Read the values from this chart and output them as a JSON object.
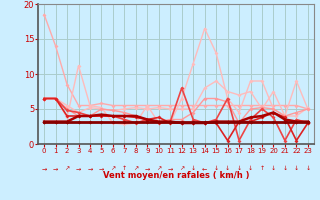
{
  "background_color": "#cceeff",
  "grid_color": "#aacccc",
  "xlim": [
    -0.5,
    23.5
  ],
  "ylim": [
    0,
    20
  ],
  "yticks": [
    0,
    5,
    10,
    15,
    20
  ],
  "xticks": [
    0,
    1,
    2,
    3,
    4,
    5,
    6,
    7,
    8,
    9,
    10,
    11,
    12,
    13,
    14,
    15,
    16,
    17,
    18,
    19,
    20,
    21,
    22,
    23
  ],
  "xlabel": "Vent moyen/en rafales ( km/h )",
  "xlabel_color": "#cc0000",
  "tick_color": "#cc0000",
  "axis_color": "#888888",
  "series": [
    {
      "x": [
        0,
        1,
        2,
        3,
        4,
        5,
        6,
        7,
        8,
        9,
        10,
        11,
        12,
        13,
        14,
        15,
        16,
        17,
        18,
        19,
        20,
        21,
        22,
        23
      ],
      "y": [
        18.5,
        14.0,
        8.5,
        5.5,
        5.5,
        5.8,
        5.5,
        5.5,
        5.5,
        5.5,
        5.5,
        5.5,
        5.5,
        5.5,
        5.5,
        5.5,
        5.5,
        5.5,
        5.5,
        5.5,
        5.5,
        5.5,
        5.5,
        5.0
      ],
      "color": "#ffaaaa",
      "alpha": 1.0,
      "linewidth": 1.0,
      "marker": "D",
      "markersize": 2.0
    },
    {
      "x": [
        0,
        1,
        2,
        3,
        4,
        5,
        6,
        7,
        8,
        9,
        10,
        11,
        12,
        13,
        14,
        15,
        16,
        17,
        18,
        19,
        20,
        21,
        22,
        23
      ],
      "y": [
        6.5,
        6.5,
        5.5,
        4.5,
        5.2,
        5.0,
        4.8,
        5.0,
        5.2,
        5.0,
        5.2,
        5.0,
        5.0,
        5.0,
        8.0,
        9.0,
        7.5,
        7.0,
        7.5,
        5.0,
        7.5,
        4.0,
        9.0,
        5.0
      ],
      "color": "#ffbbbb",
      "alpha": 1.0,
      "linewidth": 1.0,
      "marker": "D",
      "markersize": 2.0
    },
    {
      "x": [
        0,
        1,
        2,
        3,
        4,
        5,
        6,
        7,
        8,
        9,
        10,
        11,
        12,
        13,
        14,
        15,
        16,
        17,
        18,
        19,
        20,
        21,
        22,
        23
      ],
      "y": [
        6.5,
        6.5,
        3.8,
        11.2,
        5.5,
        5.2,
        3.0,
        2.8,
        3.0,
        5.5,
        3.0,
        3.0,
        6.5,
        11.5,
        16.5,
        13.0,
        6.5,
        4.5,
        9.0,
        9.0,
        5.0,
        4.0,
        4.0,
        5.2
      ],
      "color": "#ffbbbb",
      "alpha": 1.0,
      "linewidth": 1.0,
      "marker": "D",
      "markersize": 2.0
    },
    {
      "x": [
        0,
        1,
        2,
        3,
        4,
        5,
        6,
        7,
        8,
        9,
        10,
        11,
        12,
        13,
        14,
        15,
        16,
        17,
        18,
        19,
        20,
        21,
        22,
        23
      ],
      "y": [
        6.5,
        6.5,
        5.0,
        4.0,
        4.0,
        5.0,
        4.8,
        4.5,
        4.0,
        3.5,
        3.2,
        3.5,
        3.5,
        4.5,
        6.5,
        6.5,
        6.0,
        3.0,
        5.0,
        5.2,
        5.0,
        4.0,
        4.5,
        5.0
      ],
      "color": "#ff9999",
      "alpha": 1.0,
      "linewidth": 1.0,
      "marker": "D",
      "markersize": 2.0
    },
    {
      "x": [
        0,
        1,
        2,
        3,
        4,
        5,
        6,
        7,
        8,
        9,
        10,
        11,
        12,
        13,
        14,
        15,
        16,
        17,
        18,
        19,
        20,
        21,
        22,
        23
      ],
      "y": [
        6.5,
        6.5,
        4.8,
        4.5,
        4.0,
        4.0,
        4.0,
        3.5,
        3.0,
        3.5,
        3.0,
        3.2,
        8.0,
        3.5,
        3.0,
        3.5,
        6.5,
        0.5,
        3.5,
        5.0,
        3.8,
        0.5,
        3.5,
        3.0
      ],
      "color": "#ee4444",
      "alpha": 1.0,
      "linewidth": 1.2,
      "marker": "D",
      "markersize": 2.0
    },
    {
      "x": [
        0,
        1,
        2,
        3,
        4,
        5,
        6,
        7,
        8,
        9,
        10,
        11,
        12,
        13,
        14,
        15,
        16,
        17,
        18,
        19,
        20,
        21,
        22,
        23
      ],
      "y": [
        6.5,
        6.5,
        4.0,
        4.0,
        4.0,
        4.0,
        4.0,
        4.0,
        3.8,
        3.5,
        3.8,
        3.0,
        3.0,
        3.0,
        3.0,
        3.0,
        0.5,
        3.2,
        3.2,
        3.8,
        4.5,
        3.8,
        0.5,
        3.0
      ],
      "color": "#dd2222",
      "alpha": 1.0,
      "linewidth": 1.2,
      "marker": "D",
      "markersize": 2.0
    },
    {
      "x": [
        0,
        1,
        2,
        3,
        4,
        5,
        6,
        7,
        8,
        9,
        10,
        11,
        12,
        13,
        14,
        15,
        16,
        17,
        18,
        19,
        20,
        21,
        22,
        23
      ],
      "y": [
        3.2,
        3.2,
        3.2,
        4.0,
        4.0,
        4.2,
        4.0,
        4.0,
        4.0,
        3.5,
        3.2,
        3.2,
        3.0,
        3.0,
        3.0,
        3.2,
        3.2,
        3.2,
        3.8,
        4.0,
        4.5,
        3.5,
        3.2,
        3.2
      ],
      "color": "#aa0000",
      "alpha": 1.0,
      "linewidth": 1.8,
      "marker": "D",
      "markersize": 2.0
    },
    {
      "x": [
        0,
        1,
        2,
        3,
        4,
        5,
        6,
        7,
        8,
        9,
        10,
        11,
        12,
        13,
        14,
        15,
        16,
        17,
        18,
        19,
        20,
        21,
        22,
        23
      ],
      "y": [
        3.2,
        3.2,
        3.2,
        3.2,
        3.2,
        3.2,
        3.2,
        3.2,
        3.2,
        3.2,
        3.2,
        3.2,
        3.2,
        3.2,
        3.2,
        3.2,
        3.2,
        3.2,
        3.2,
        3.2,
        3.2,
        3.2,
        3.2,
        3.2
      ],
      "color": "#880000",
      "alpha": 1.0,
      "linewidth": 2.0,
      "marker": "D",
      "markersize": 2.0
    }
  ],
  "arrows": [
    "→",
    "→",
    "↗",
    "→",
    "→",
    "→",
    "↗",
    "↑",
    "↗",
    "→",
    "↗",
    "→",
    "↗",
    "↓",
    "←",
    "↓",
    "↓",
    "↓",
    "↓",
    "↑",
    "↓",
    "↓",
    "↓",
    "↓"
  ]
}
